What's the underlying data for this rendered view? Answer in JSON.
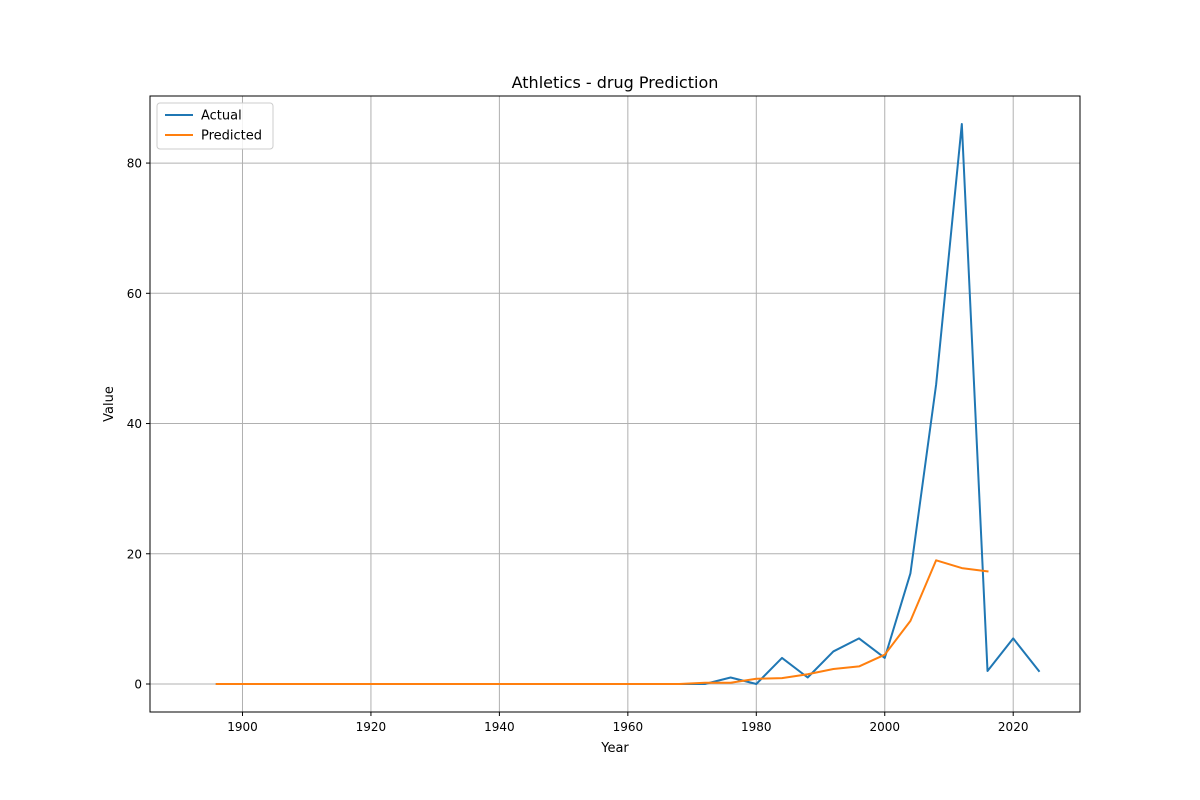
{
  "chart_data": {
    "type": "line",
    "title": "Athletics - drug Prediction",
    "xlabel": "Year",
    "ylabel": "Value",
    "xlim": [
      1885.6,
      2030.4
    ],
    "ylim": [
      -4.3,
      90.3
    ],
    "xticks": [
      1900,
      1920,
      1940,
      1960,
      1980,
      2000,
      2020
    ],
    "yticks": [
      0,
      20,
      40,
      60,
      80
    ],
    "grid": true,
    "legend_position": "top-left",
    "series": [
      {
        "name": "Actual",
        "color": "#1f77b4",
        "x": [
          1896,
          1900,
          1904,
          1908,
          1912,
          1920,
          1924,
          1928,
          1932,
          1936,
          1948,
          1952,
          1956,
          1960,
          1964,
          1968,
          1972,
          1976,
          1980,
          1984,
          1988,
          1992,
          1996,
          2000,
          2004,
          2008,
          2012,
          2016,
          2020,
          2024
        ],
        "y": [
          0,
          0,
          0,
          0,
          0,
          0,
          0,
          0,
          0,
          0,
          0,
          0,
          0,
          0,
          0,
          0,
          0,
          1,
          0,
          4,
          1,
          5,
          7,
          4,
          17,
          46,
          86,
          2,
          7,
          2
        ]
      },
      {
        "name": "Predicted",
        "color": "#ff7f0e",
        "x": [
          1896,
          1900,
          1904,
          1908,
          1912,
          1920,
          1924,
          1928,
          1932,
          1936,
          1948,
          1952,
          1956,
          1960,
          1964,
          1968,
          1972,
          1976,
          1980,
          1984,
          1988,
          1992,
          1996,
          2000,
          2004,
          2008,
          2012,
          2016
        ],
        "y": [
          0,
          0,
          0,
          0,
          0,
          0,
          0,
          0,
          0,
          0,
          0,
          0,
          0,
          0,
          0,
          0,
          0.2,
          0.2,
          0.8,
          0.9,
          1.5,
          2.3,
          2.7,
          4.5,
          9.7,
          19,
          17.8,
          17.3
        ]
      }
    ]
  }
}
